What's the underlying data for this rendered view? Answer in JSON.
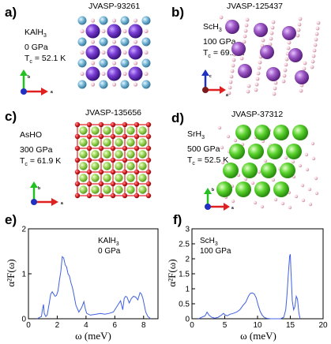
{
  "panels": {
    "a": {
      "letter": "a)",
      "jid": "JVASP-93261",
      "material": "KAlH",
      "material_sub": "3",
      "pressure": "0 GPa",
      "tc_value": "= 52.1 K"
    },
    "b": {
      "letter": "b)",
      "jid": "JVASP-125437",
      "material": "ScH",
      "material_sub": "3",
      "pressure": "100 GPa",
      "tc_value": "= 69.2 K"
    },
    "c": {
      "letter": "c)",
      "jid": "JVASP-135656",
      "material": "AsHO",
      "material_sub": "",
      "pressure": "300 GPa",
      "tc_value": "= 61.9 K"
    },
    "d": {
      "letter": "d)",
      "jid": "JVASP-37312",
      "material": "SrH",
      "material_sub": "3",
      "pressure": "500 GPa",
      "tc_value": "= 52.5 K"
    },
    "e": {
      "letter": "e)"
    },
    "f": {
      "letter": "f)"
    }
  },
  "tc_label": "T",
  "tc_sub": "c",
  "axis_labels": {
    "a": "a",
    "b": "b",
    "c": "c"
  },
  "colors": {
    "K": "#7b3fd6",
    "Al": "#78b8d8",
    "H": "#f2c9d6",
    "Sc": "#a05cc8",
    "As": "#b7e07a",
    "O": "#e0242a",
    "Sr": "#58d22c",
    "bond": "#e8a8c0",
    "axis_a": "#e02020",
    "axis_b": "#22c022",
    "axis_c": "#2030c0",
    "line": "#4060e0"
  },
  "chart_data": [
    {
      "type": "line",
      "annotation_lines": [
        "KAlH3",
        "0 GPa"
      ],
      "xlabel": "ω (meV)",
      "ylabel": "α²F(ω)",
      "xlim": [
        0,
        9
      ],
      "ylim": [
        0,
        2
      ],
      "xticks": [
        "0",
        "2",
        "4",
        "6",
        "8"
      ],
      "yticks": [
        "0",
        "1",
        "2"
      ],
      "x": [
        0.6,
        0.9,
        1.0,
        1.05,
        1.1,
        1.2,
        1.3,
        1.45,
        1.55,
        1.65,
        1.75,
        1.85,
        1.95,
        2.05,
        2.15,
        2.25,
        2.35,
        2.45,
        2.55,
        2.65,
        2.75,
        2.85,
        2.95,
        3.05,
        3.15,
        3.3,
        3.5,
        3.7,
        3.85,
        3.95,
        4.05,
        4.3,
        4.7,
        5.0,
        5.3,
        5.6,
        5.9,
        6.2,
        6.4,
        6.55,
        6.65,
        6.75,
        6.85,
        7.0,
        7.15,
        7.3,
        7.45,
        7.6,
        7.75,
        7.85,
        7.95,
        8.05,
        8.15,
        8.3,
        8.5
      ],
      "y": [
        0.0,
        0.05,
        0.25,
        0.32,
        0.12,
        0.05,
        0.08,
        0.35,
        0.55,
        0.6,
        0.55,
        0.5,
        0.52,
        0.62,
        0.85,
        1.05,
        1.38,
        1.35,
        1.2,
        1.15,
        1.0,
        0.95,
        0.8,
        0.7,
        0.55,
        0.3,
        0.15,
        0.25,
        0.38,
        0.22,
        0.12,
        0.08,
        0.1,
        0.12,
        0.1,
        0.12,
        0.15,
        0.3,
        0.4,
        0.2,
        0.45,
        0.5,
        0.48,
        0.35,
        0.45,
        0.5,
        0.48,
        0.42,
        0.58,
        0.55,
        0.45,
        0.3,
        0.15,
        0.05,
        0.0
      ]
    },
    {
      "type": "line",
      "annotation_lines": [
        "ScH3",
        "100 GPa"
      ],
      "xlabel": "ω (meV)",
      "ylabel": "α²F(ω)",
      "xlim": [
        0,
        20
      ],
      "ylim": [
        0,
        3
      ],
      "xticks": [
        "0",
        "5",
        "10",
        "15",
        "20"
      ],
      "yticks": [
        "0",
        "0.5",
        "1",
        "1.5",
        "2",
        "2.5",
        "3"
      ],
      "x": [
        1.0,
        1.5,
        2.0,
        2.3,
        2.6,
        3.0,
        3.5,
        4.0,
        4.5,
        4.8,
        5.1,
        5.4,
        5.8,
        6.3,
        6.8,
        7.3,
        7.8,
        8.2,
        8.6,
        8.9,
        9.2,
        9.5,
        9.8,
        10.1,
        10.4,
        10.7,
        11.0,
        11.3,
        11.6,
        12.0,
        13.5,
        14.0,
        14.3,
        14.5,
        14.7,
        14.9,
        15.0,
        15.1,
        15.3,
        15.5,
        15.7,
        15.9,
        16.1,
        16.3,
        16.5
      ],
      "y": [
        0.0,
        0.05,
        0.1,
        0.22,
        0.12,
        0.05,
        0.02,
        0.05,
        0.12,
        0.18,
        0.12,
        0.1,
        0.15,
        0.18,
        0.22,
        0.3,
        0.45,
        0.55,
        0.75,
        0.85,
        0.86,
        0.83,
        0.7,
        0.45,
        0.25,
        0.12,
        0.05,
        0.02,
        0.01,
        0.0,
        0.0,
        0.05,
        0.3,
        0.8,
        1.5,
        2.1,
        2.15,
        1.6,
        0.6,
        0.3,
        0.4,
        0.75,
        0.65,
        0.2,
        0.0
      ]
    }
  ]
}
